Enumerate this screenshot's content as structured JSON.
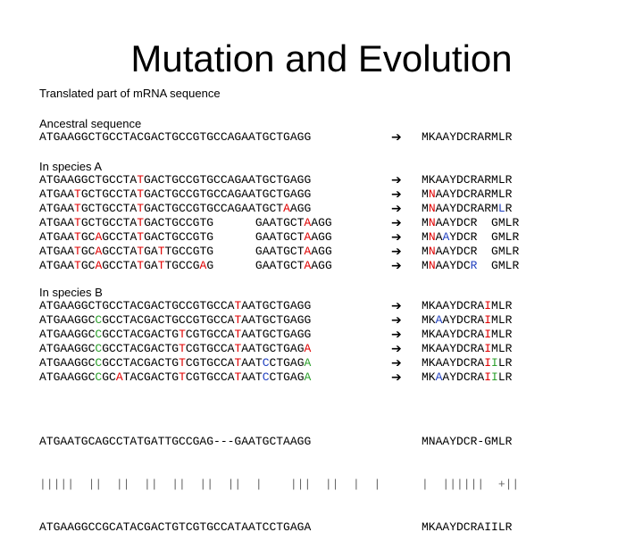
{
  "title": "Mutation and Evolution",
  "subtitle": "Translated part of mRNA sequence",
  "arrow_glyph": "➔",
  "colors": {
    "black": "#000000",
    "red": "#e00000",
    "green": "#2ca02c",
    "blue": "#1f3fbf",
    "gray": "#666666"
  },
  "sections": [
    {
      "label": "Ancestral sequence",
      "dna": [
        [
          [
            "ATGAAGGCTGCCTACGACTGCCGTGCCAGAATGCTGAGG",
            "k"
          ]
        ]
      ],
      "protein": [
        [
          [
            "MKAAYDCRARMLR",
            "k"
          ]
        ]
      ]
    },
    {
      "label": "In species A",
      "dna": [
        [
          [
            "ATGAAGGCTGCCTA",
            "k"
          ],
          [
            "T",
            "r"
          ],
          [
            "GACTGCCGTGCCAGAATGCTGAGG",
            "k"
          ]
        ],
        [
          [
            "ATGAA",
            "k"
          ],
          [
            "T",
            "r"
          ],
          [
            "GCTGCCTA",
            "k"
          ],
          [
            "T",
            "r"
          ],
          [
            "GACTGCCGTGCCAGAATGCTGAGG",
            "k"
          ]
        ],
        [
          [
            "ATGAA",
            "k"
          ],
          [
            "T",
            "r"
          ],
          [
            "GCTGCCTA",
            "k"
          ],
          [
            "T",
            "r"
          ],
          [
            "GACTGCCGTGCCAGAATGCT",
            "k"
          ],
          [
            "A",
            "r"
          ],
          [
            "AGG",
            "k"
          ]
        ],
        [
          [
            "ATGAA",
            "k"
          ],
          [
            "T",
            "r"
          ],
          [
            "GCTGCCTA",
            "k"
          ],
          [
            "T",
            "r"
          ],
          [
            "GACTGCCGTG      GAATGCT",
            "k"
          ],
          [
            "A",
            "r"
          ],
          [
            "AGG",
            "k"
          ]
        ],
        [
          [
            "ATGAA",
            "k"
          ],
          [
            "T",
            "r"
          ],
          [
            "GC",
            "k"
          ],
          [
            "A",
            "r"
          ],
          [
            "GCCTA",
            "k"
          ],
          [
            "T",
            "r"
          ],
          [
            "GACTGCCGTG      GAATGCT",
            "k"
          ],
          [
            "A",
            "r"
          ],
          [
            "AGG",
            "k"
          ]
        ],
        [
          [
            "ATGAA",
            "k"
          ],
          [
            "T",
            "r"
          ],
          [
            "GC",
            "k"
          ],
          [
            "A",
            "r"
          ],
          [
            "GCCTA",
            "k"
          ],
          [
            "T",
            "r"
          ],
          [
            "GA",
            "k"
          ],
          [
            "T",
            "r"
          ],
          [
            "TGCCGTG      GAATGCT",
            "k"
          ],
          [
            "A",
            "r"
          ],
          [
            "AGG",
            "k"
          ]
        ],
        [
          [
            "ATGAA",
            "k"
          ],
          [
            "T",
            "r"
          ],
          [
            "GC",
            "k"
          ],
          [
            "A",
            "r"
          ],
          [
            "GCCTA",
            "k"
          ],
          [
            "T",
            "r"
          ],
          [
            "GA",
            "k"
          ],
          [
            "T",
            "r"
          ],
          [
            "TGCCG",
            "k"
          ],
          [
            "A",
            "r"
          ],
          [
            "G      GAATGCT",
            "k"
          ],
          [
            "A",
            "r"
          ],
          [
            "AGG",
            "k"
          ]
        ]
      ],
      "protein": [
        [
          [
            "MKAAYDCRARMLR",
            "k"
          ]
        ],
        [
          [
            "M",
            "k"
          ],
          [
            "N",
            "r"
          ],
          [
            "AAYDCRARMLR",
            "k"
          ]
        ],
        [
          [
            "M",
            "k"
          ],
          [
            "N",
            "r"
          ],
          [
            "AAYDCRARM",
            "k"
          ],
          [
            "L",
            "b"
          ],
          [
            "R",
            "k"
          ]
        ],
        [
          [
            "M",
            "k"
          ],
          [
            "N",
            "r"
          ],
          [
            "AAYDCR  GMLR",
            "k"
          ]
        ],
        [
          [
            "M",
            "k"
          ],
          [
            "N",
            "r"
          ],
          [
            "A",
            "k"
          ],
          [
            "A",
            "b"
          ],
          [
            "YDCR  GMLR",
            "k"
          ]
        ],
        [
          [
            "M",
            "k"
          ],
          [
            "N",
            "r"
          ],
          [
            "AAYDCR  GMLR",
            "k"
          ]
        ],
        [
          [
            "M",
            "k"
          ],
          [
            "N",
            "r"
          ],
          [
            "AAYDC",
            "k"
          ],
          [
            "R",
            "b"
          ],
          [
            "  GMLR",
            "k"
          ]
        ]
      ]
    },
    {
      "label": "In species B",
      "dna": [
        [
          [
            "ATGAAGGCTGCCTACGACTGCCGTGCCA",
            "k"
          ],
          [
            "T",
            "r"
          ],
          [
            "AATGCTGAGG",
            "k"
          ]
        ],
        [
          [
            "ATGAAGGC",
            "k"
          ],
          [
            "C",
            "g"
          ],
          [
            "GCCTACGACTGCCGTGCCA",
            "k"
          ],
          [
            "T",
            "r"
          ],
          [
            "AATGCTGAGG",
            "k"
          ]
        ],
        [
          [
            "ATGAAGGC",
            "k"
          ],
          [
            "C",
            "g"
          ],
          [
            "GCCTACGACTG",
            "k"
          ],
          [
            "T",
            "r"
          ],
          [
            "CGTGCCA",
            "k"
          ],
          [
            "T",
            "r"
          ],
          [
            "AATGCTGAGG",
            "k"
          ]
        ],
        [
          [
            "ATGAAGGC",
            "k"
          ],
          [
            "C",
            "g"
          ],
          [
            "GCCTACGACTG",
            "k"
          ],
          [
            "T",
            "r"
          ],
          [
            "CGTGCCA",
            "k"
          ],
          [
            "T",
            "r"
          ],
          [
            "AATGCTGAG",
            "k"
          ],
          [
            "A",
            "r"
          ]
        ],
        [
          [
            "ATGAAGGC",
            "k"
          ],
          [
            "C",
            "g"
          ],
          [
            "GCCTACGACTG",
            "k"
          ],
          [
            "T",
            "r"
          ],
          [
            "CGTGCCA",
            "k"
          ],
          [
            "T",
            "r"
          ],
          [
            "AAT",
            "k"
          ],
          [
            "C",
            "b"
          ],
          [
            "CTGAG",
            "k"
          ],
          [
            "A",
            "g"
          ]
        ],
        [
          [
            "ATGAAGGC",
            "k"
          ],
          [
            "C",
            "g"
          ],
          [
            "GC",
            "k"
          ],
          [
            "A",
            "r"
          ],
          [
            "TACGACTG",
            "k"
          ],
          [
            "T",
            "r"
          ],
          [
            "CGTGCCA",
            "k"
          ],
          [
            "T",
            "r"
          ],
          [
            "AAT",
            "k"
          ],
          [
            "C",
            "b"
          ],
          [
            "CTGAG",
            "k"
          ],
          [
            "A",
            "g"
          ]
        ]
      ],
      "protein": [
        [
          [
            "MKAAYDCRA",
            "k"
          ],
          [
            "I",
            "r"
          ],
          [
            "MLR",
            "k"
          ]
        ],
        [
          [
            "MK",
            "k"
          ],
          [
            "A",
            "b"
          ],
          [
            "AYDCRA",
            "k"
          ],
          [
            "I",
            "r"
          ],
          [
            "MLR",
            "k"
          ]
        ],
        [
          [
            "MKAAYDCRA",
            "k"
          ],
          [
            "I",
            "r"
          ],
          [
            "MLR",
            "k"
          ]
        ],
        [
          [
            "MKAAYDCRA",
            "k"
          ],
          [
            "I",
            "r"
          ],
          [
            "MLR",
            "k"
          ]
        ],
        [
          [
            "MKAAYDCRA",
            "k"
          ],
          [
            "I",
            "r"
          ],
          [
            "I",
            "g"
          ],
          [
            "LR",
            "k"
          ]
        ],
        [
          [
            "MK",
            "k"
          ],
          [
            "A",
            "b"
          ],
          [
            "AYDCRA",
            "k"
          ],
          [
            "I",
            "r"
          ],
          [
            "I",
            "g"
          ],
          [
            "LR",
            "k"
          ]
        ]
      ]
    }
  ],
  "alignment": {
    "dna": [
      "ATGAATGCAGCCTATGATTGCCGAG---GAATGCTAAGG",
      "|||||  ||  ||  ||  ||  ||  ||  |    |||  ||  |  |",
      "ATGAAGGCCGCATACGACTGTCGTGCCATAATCCTGAGA"
    ],
    "protein": [
      "MNAAYDCR-GMLR",
      "|  ||||||  +||",
      "MKAAYDCRAIILR"
    ]
  }
}
